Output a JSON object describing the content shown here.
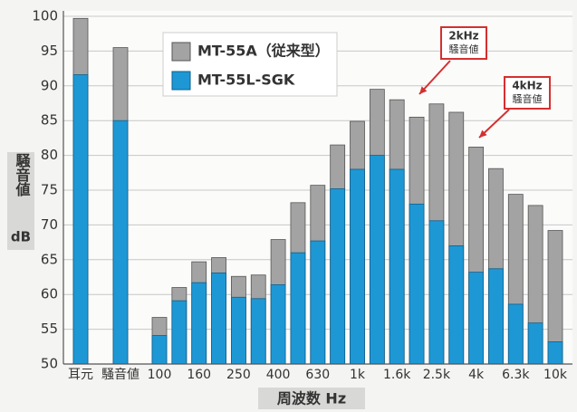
{
  "chart_data": {
    "type": "bar",
    "categories": [
      "耳元",
      "騒音値",
      "100",
      null,
      "160",
      null,
      "250",
      null,
      "400",
      null,
      "630",
      null,
      "1k",
      null,
      "1.6k",
      null,
      "2.5k",
      null,
      "4k",
      null,
      "6.3k",
      null,
      "10k"
    ],
    "series": [
      {
        "name": "MT-55A（従来型）",
        "color": "#a3a3a3",
        "values": [
          99.7,
          95.5,
          56.7,
          61,
          64.7,
          65.3,
          62.6,
          62.8,
          67.9,
          73.2,
          75.7,
          81.5,
          84.9,
          89.5,
          88,
          85.5,
          87.4,
          86.2,
          81.2,
          78.1,
          74.4,
          72.8,
          69.2
        ]
      },
      {
        "name": "MT-55L-SGK",
        "color": "#1e98d5",
        "values": [
          91.6,
          85,
          54.1,
          59.1,
          61.7,
          63.1,
          59.6,
          59.4,
          61.4,
          66,
          67.7,
          75.2,
          78,
          80,
          78,
          73,
          70.6,
          67,
          63.2,
          63.7,
          58.6,
          55.9,
          53.2
        ]
      }
    ],
    "ylim": [
      50,
      100
    ],
    "yticks": [
      50,
      55,
      60,
      65,
      70,
      75,
      80,
      85,
      90,
      95,
      100
    ],
    "grid": true,
    "y_label": [
      "騒音値",
      "dB"
    ],
    "x_label": "周波数 Hz",
    "annotations": [
      {
        "lines": [
          "2kHz",
          "騒音値"
        ]
      },
      {
        "lines": [
          "4kHz",
          "騒音値"
        ]
      }
    ]
  }
}
